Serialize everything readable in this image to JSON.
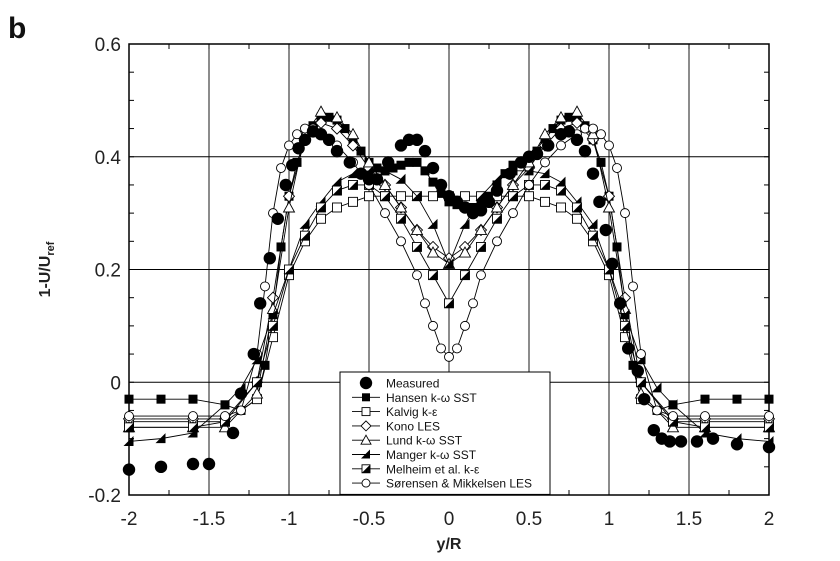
{
  "chart_data": {
    "type": "line",
    "panel_label": "b",
    "xlabel": "y/R",
    "ylabel_main": "1-U/U",
    "ylabel_sub": "ref",
    "xlim": [
      -2,
      2
    ],
    "ylim": [
      -0.2,
      0.6
    ],
    "x_ticks": [
      -2,
      -1.5,
      -1,
      -0.5,
      0,
      0.5,
      1,
      1.5,
      2
    ],
    "x_tick_labels": [
      "-2",
      "-1.5",
      "-1",
      "-0.5",
      "0",
      "0.5",
      "1",
      "1.5",
      "2"
    ],
    "y_ticks": [
      -0.2,
      0,
      0.2,
      0.4,
      0.6
    ],
    "y_tick_labels": [
      "-0.2",
      "0",
      "0.2",
      "0.4",
      "0.6"
    ],
    "grid": true,
    "legend_position": "bottom-center",
    "series": [
      {
        "name": "Measured",
        "marker": "filled-circle",
        "line": false,
        "x": [
          -2.0,
          -1.8,
          -1.6,
          -1.5,
          -1.35,
          -1.3,
          -1.22,
          -1.18,
          -1.12,
          -1.07,
          -1.02,
          -0.98,
          -0.94,
          -0.9,
          -0.85,
          -0.8,
          -0.75,
          -0.7,
          -0.62,
          -0.55,
          -0.5,
          -0.45,
          -0.38,
          -0.3,
          -0.25,
          -0.2,
          -0.15,
          -0.1,
          -0.05,
          0.0,
          0.05,
          0.1,
          0.15,
          0.2,
          0.25,
          0.3,
          0.38,
          0.45,
          0.5,
          0.55,
          0.62,
          0.7,
          0.75,
          0.8,
          0.85,
          0.9,
          0.94,
          0.98,
          1.02,
          1.07,
          1.12,
          1.18,
          1.22,
          1.28,
          1.33,
          1.38,
          1.45,
          1.55,
          1.65,
          1.8,
          2.0
        ],
        "y": [
          -0.155,
          -0.15,
          -0.145,
          -0.145,
          -0.09,
          -0.02,
          0.05,
          0.14,
          0.22,
          0.29,
          0.35,
          0.385,
          0.415,
          0.43,
          0.445,
          0.44,
          0.43,
          0.41,
          0.39,
          0.37,
          0.36,
          0.36,
          0.39,
          0.42,
          0.43,
          0.43,
          0.41,
          0.38,
          0.35,
          0.33,
          0.32,
          0.31,
          0.3,
          0.305,
          0.32,
          0.34,
          0.37,
          0.39,
          0.4,
          0.405,
          0.42,
          0.44,
          0.445,
          0.43,
          0.41,
          0.37,
          0.32,
          0.27,
          0.21,
          0.14,
          0.06,
          0.02,
          -0.03,
          -0.085,
          -0.1,
          -0.105,
          -0.105,
          -0.105,
          -0.1,
          -0.11,
          -0.115
        ]
      },
      {
        "name": "Hansen k-ω SST",
        "marker": "filled-square",
        "line": true,
        "x": [
          -2.0,
          -1.8,
          -1.6,
          -1.4,
          -1.3,
          -1.2,
          -1.15,
          -1.1,
          -1.05,
          -1.0,
          -0.95,
          -0.9,
          -0.85,
          -0.8,
          -0.75,
          -0.7,
          -0.65,
          -0.6,
          -0.55,
          -0.5,
          -0.45,
          -0.4,
          -0.35,
          -0.3,
          -0.25,
          -0.2,
          -0.15,
          -0.1,
          -0.05,
          0.0,
          0.05,
          0.1,
          0.15,
          0.2,
          0.25,
          0.3,
          0.35,
          0.4,
          0.45,
          0.5,
          0.55,
          0.6,
          0.65,
          0.7,
          0.75,
          0.8,
          0.85,
          0.9,
          0.95,
          1.0,
          1.05,
          1.1,
          1.15,
          1.2,
          1.3,
          1.4,
          1.6,
          1.8,
          2.0
        ],
        "y": [
          -0.03,
          -0.03,
          -0.03,
          -0.04,
          -0.05,
          -0.03,
          0.03,
          0.12,
          0.24,
          0.33,
          0.39,
          0.43,
          0.455,
          0.47,
          0.47,
          0.465,
          0.45,
          0.43,
          0.41,
          0.39,
          0.38,
          0.375,
          0.38,
          0.385,
          0.39,
          0.39,
          0.375,
          0.355,
          0.335,
          0.32,
          0.315,
          0.31,
          0.31,
          0.32,
          0.33,
          0.35,
          0.37,
          0.385,
          0.39,
          0.4,
          0.41,
          0.43,
          0.45,
          0.465,
          0.47,
          0.47,
          0.455,
          0.43,
          0.39,
          0.33,
          0.24,
          0.12,
          0.03,
          -0.03,
          -0.05,
          -0.04,
          -0.03,
          -0.03,
          -0.03
        ]
      },
      {
        "name": "Kalvig k-ε",
        "marker": "open-square",
        "line": true,
        "x": [
          -2.0,
          -1.6,
          -1.4,
          -1.2,
          -1.1,
          -1.0,
          -0.9,
          -0.8,
          -0.7,
          -0.6,
          -0.5,
          -0.4,
          -0.3,
          -0.2,
          -0.1,
          0.0,
          0.1,
          0.2,
          0.3,
          0.4,
          0.5,
          0.6,
          0.7,
          0.8,
          0.9,
          1.0,
          1.1,
          1.2,
          1.4,
          1.6,
          2.0
        ],
        "y": [
          -0.07,
          -0.07,
          -0.07,
          -0.03,
          0.08,
          0.19,
          0.25,
          0.29,
          0.31,
          0.32,
          0.33,
          0.33,
          0.33,
          0.33,
          0.33,
          0.33,
          0.33,
          0.33,
          0.33,
          0.33,
          0.33,
          0.32,
          0.31,
          0.29,
          0.25,
          0.19,
          0.08,
          -0.03,
          -0.07,
          -0.07,
          -0.07
        ]
      },
      {
        "name": "Kono LES",
        "marker": "open-diamond",
        "line": true,
        "x": [
          -2.0,
          -1.6,
          -1.4,
          -1.2,
          -1.1,
          -1.0,
          -0.9,
          -0.8,
          -0.7,
          -0.6,
          -0.5,
          -0.4,
          -0.3,
          -0.2,
          -0.1,
          0.0,
          0.1,
          0.2,
          0.3,
          0.4,
          0.5,
          0.6,
          0.7,
          0.8,
          0.9,
          1.0,
          1.1,
          1.2,
          1.4,
          1.6,
          2.0
        ],
        "y": [
          -0.065,
          -0.065,
          -0.065,
          0.0,
          0.15,
          0.33,
          0.43,
          0.46,
          0.45,
          0.42,
          0.38,
          0.35,
          0.31,
          0.27,
          0.24,
          0.22,
          0.24,
          0.27,
          0.31,
          0.35,
          0.38,
          0.42,
          0.45,
          0.46,
          0.43,
          0.33,
          0.15,
          0.0,
          -0.065,
          -0.065,
          -0.065
        ]
      },
      {
        "name": "Lund k-ω SST",
        "marker": "open-triangle",
        "line": true,
        "x": [
          -2.0,
          -1.6,
          -1.4,
          -1.2,
          -1.1,
          -1.0,
          -0.9,
          -0.8,
          -0.7,
          -0.6,
          -0.5,
          -0.4,
          -0.3,
          -0.2,
          -0.1,
          0.0,
          0.1,
          0.2,
          0.3,
          0.4,
          0.5,
          0.6,
          0.7,
          0.8,
          0.9,
          1.0,
          1.1,
          1.2,
          1.4,
          1.6,
          2.0
        ],
        "y": [
          -0.08,
          -0.08,
          -0.08,
          -0.02,
          0.13,
          0.31,
          0.44,
          0.48,
          0.47,
          0.44,
          0.39,
          0.35,
          0.31,
          0.27,
          0.23,
          0.21,
          0.23,
          0.27,
          0.31,
          0.35,
          0.39,
          0.44,
          0.47,
          0.48,
          0.44,
          0.31,
          0.13,
          -0.02,
          -0.08,
          -0.08,
          -0.08
        ]
      },
      {
        "name": "Manger k-ω SST",
        "marker": "filled-triangle",
        "line": true,
        "x": [
          -2.0,
          -1.8,
          -1.6,
          -1.4,
          -1.3,
          -1.2,
          -1.1,
          -1.0,
          -0.9,
          -0.8,
          -0.7,
          -0.6,
          -0.5,
          -0.4,
          -0.3,
          -0.2,
          -0.1,
          0.0,
          0.1,
          0.2,
          0.3,
          0.4,
          0.5,
          0.6,
          0.7,
          0.8,
          0.9,
          1.0,
          1.1,
          1.2,
          1.3,
          1.4,
          1.6,
          1.8,
          2.0
        ],
        "y": [
          -0.105,
          -0.1,
          -0.09,
          -0.04,
          -0.01,
          0.04,
          0.12,
          0.2,
          0.28,
          0.32,
          0.355,
          0.37,
          0.375,
          0.375,
          0.36,
          0.33,
          0.28,
          0.21,
          0.28,
          0.33,
          0.36,
          0.375,
          0.375,
          0.37,
          0.355,
          0.32,
          0.28,
          0.2,
          0.12,
          0.04,
          -0.01,
          -0.04,
          -0.09,
          -0.1,
          -0.105
        ]
      },
      {
        "name": "Melheim et al. k-ε",
        "marker": "half-square",
        "line": true,
        "x": [
          -2.0,
          -1.6,
          -1.4,
          -1.2,
          -1.1,
          -1.0,
          -0.9,
          -0.8,
          -0.7,
          -0.6,
          -0.5,
          -0.4,
          -0.3,
          -0.2,
          -0.1,
          0.0,
          0.1,
          0.2,
          0.3,
          0.4,
          0.5,
          0.6,
          0.7,
          0.8,
          0.9,
          1.0,
          1.1,
          1.2,
          1.4,
          1.6,
          2.0
        ],
        "y": [
          -0.08,
          -0.08,
          -0.07,
          0.0,
          0.1,
          0.2,
          0.26,
          0.31,
          0.34,
          0.35,
          0.35,
          0.33,
          0.29,
          0.24,
          0.19,
          0.14,
          0.19,
          0.24,
          0.29,
          0.33,
          0.35,
          0.35,
          0.34,
          0.31,
          0.26,
          0.2,
          0.1,
          0.0,
          -0.07,
          -0.08,
          -0.08
        ]
      },
      {
        "name": "Sørensen & Mikkelsen LES",
        "marker": "open-circle",
        "line": true,
        "x": [
          -2.0,
          -1.6,
          -1.4,
          -1.3,
          -1.2,
          -1.15,
          -1.1,
          -1.05,
          -1.0,
          -0.95,
          -0.9,
          -0.85,
          -0.8,
          -0.7,
          -0.6,
          -0.5,
          -0.4,
          -0.3,
          -0.2,
          -0.15,
          -0.1,
          -0.05,
          0.0,
          0.05,
          0.1,
          0.15,
          0.2,
          0.3,
          0.4,
          0.5,
          0.6,
          0.7,
          0.8,
          0.85,
          0.9,
          0.95,
          1.0,
          1.05,
          1.1,
          1.15,
          1.2,
          1.3,
          1.4,
          1.6,
          2.0
        ],
        "y": [
          -0.06,
          -0.06,
          -0.06,
          -0.05,
          0.05,
          0.17,
          0.3,
          0.38,
          0.42,
          0.44,
          0.45,
          0.45,
          0.44,
          0.42,
          0.39,
          0.35,
          0.3,
          0.25,
          0.19,
          0.14,
          0.1,
          0.06,
          0.045,
          0.06,
          0.1,
          0.14,
          0.19,
          0.25,
          0.3,
          0.35,
          0.39,
          0.42,
          0.44,
          0.45,
          0.45,
          0.44,
          0.42,
          0.38,
          0.3,
          0.17,
          0.05,
          -0.05,
          -0.06,
          -0.06,
          -0.06
        ]
      }
    ]
  }
}
